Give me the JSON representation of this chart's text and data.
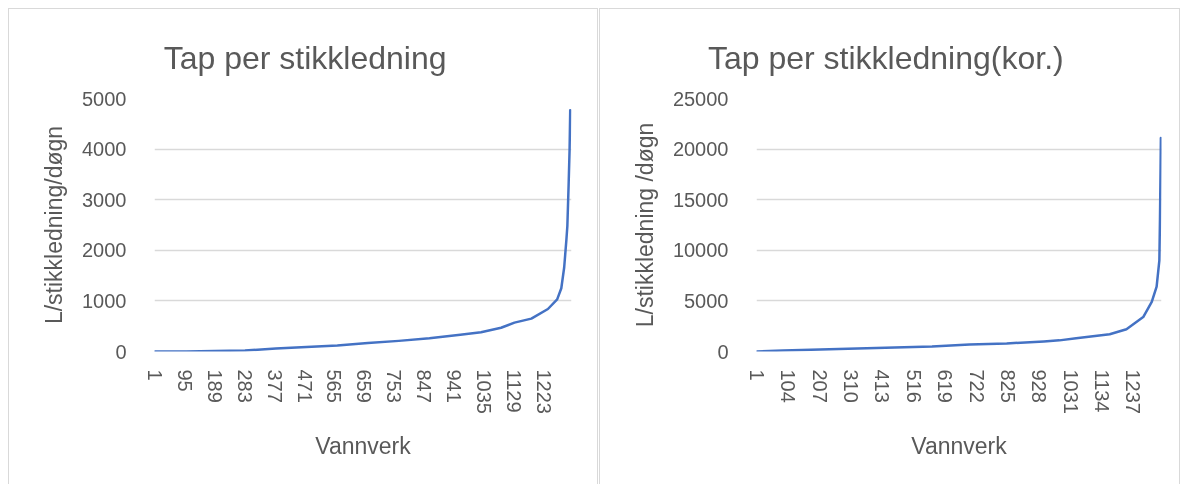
{
  "chart_data": [
    {
      "type": "line",
      "title": "Tap per stikkledning",
      "xlabel": "Vannverk",
      "ylabel": "L/stikkledning/døgn",
      "series": [
        {
          "color": "#4472c4",
          "x": [
            1,
            100,
            188,
            284,
            381,
            477,
            574,
            670,
            767,
            863,
            960,
            1025,
            1088,
            1130,
            1183,
            1235,
            1264,
            1277,
            1286,
            1293,
            1296,
            1300,
            1303,
            1305
          ],
          "values": [
            0,
            0,
            10,
            20,
            60,
            90,
            120,
            170,
            210,
            260,
            330,
            380,
            470,
            570,
            650,
            840,
            1030,
            1250,
            1660,
            2210,
            2480,
            3300,
            3990,
            4770
          ]
        }
      ],
      "xlim": [
        0,
        1309
      ],
      "xticks": [
        1,
        95,
        189,
        283,
        377,
        471,
        565,
        659,
        753,
        847,
        941,
        1035,
        1129,
        1223
      ],
      "ylim": [
        0,
        5000
      ],
      "yticks": [
        0,
        1000,
        2000,
        3000,
        4000,
        5000
      ],
      "grid": "y",
      "line_style": "solid"
    },
    {
      "type": "line",
      "title": "Tap per stikkledning(kor.)",
      "xlabel": "Vannverk",
      "ylabel": "L/stikkledning /døgn",
      "series": [
        {
          "color": "#4472c4",
          "x": [
            1,
            87,
            209,
            331,
            454,
            576,
            699,
            821,
            943,
            994,
            1049,
            1104,
            1159,
            1214,
            1269,
            1297,
            1313,
            1322,
            1324,
            1326,
            1327
          ],
          "values": [
            0,
            100,
            200,
            300,
            400,
            500,
            700,
            800,
            1000,
            1100,
            1300,
            1500,
            1700,
            2200,
            3400,
            4900,
            6400,
            9000,
            13100,
            18200,
            21100
          ]
        }
      ],
      "xlim": [
        0,
        1329
      ],
      "xticks": [
        1,
        104,
        207,
        310,
        413,
        516,
        619,
        722,
        825,
        928,
        1031,
        1134,
        1237
      ],
      "ylim": [
        0,
        25000
      ],
      "yticks": [
        0,
        5000,
        10000,
        15000,
        20000,
        25000
      ],
      "grid": "y",
      "line_style": "solid"
    }
  ]
}
